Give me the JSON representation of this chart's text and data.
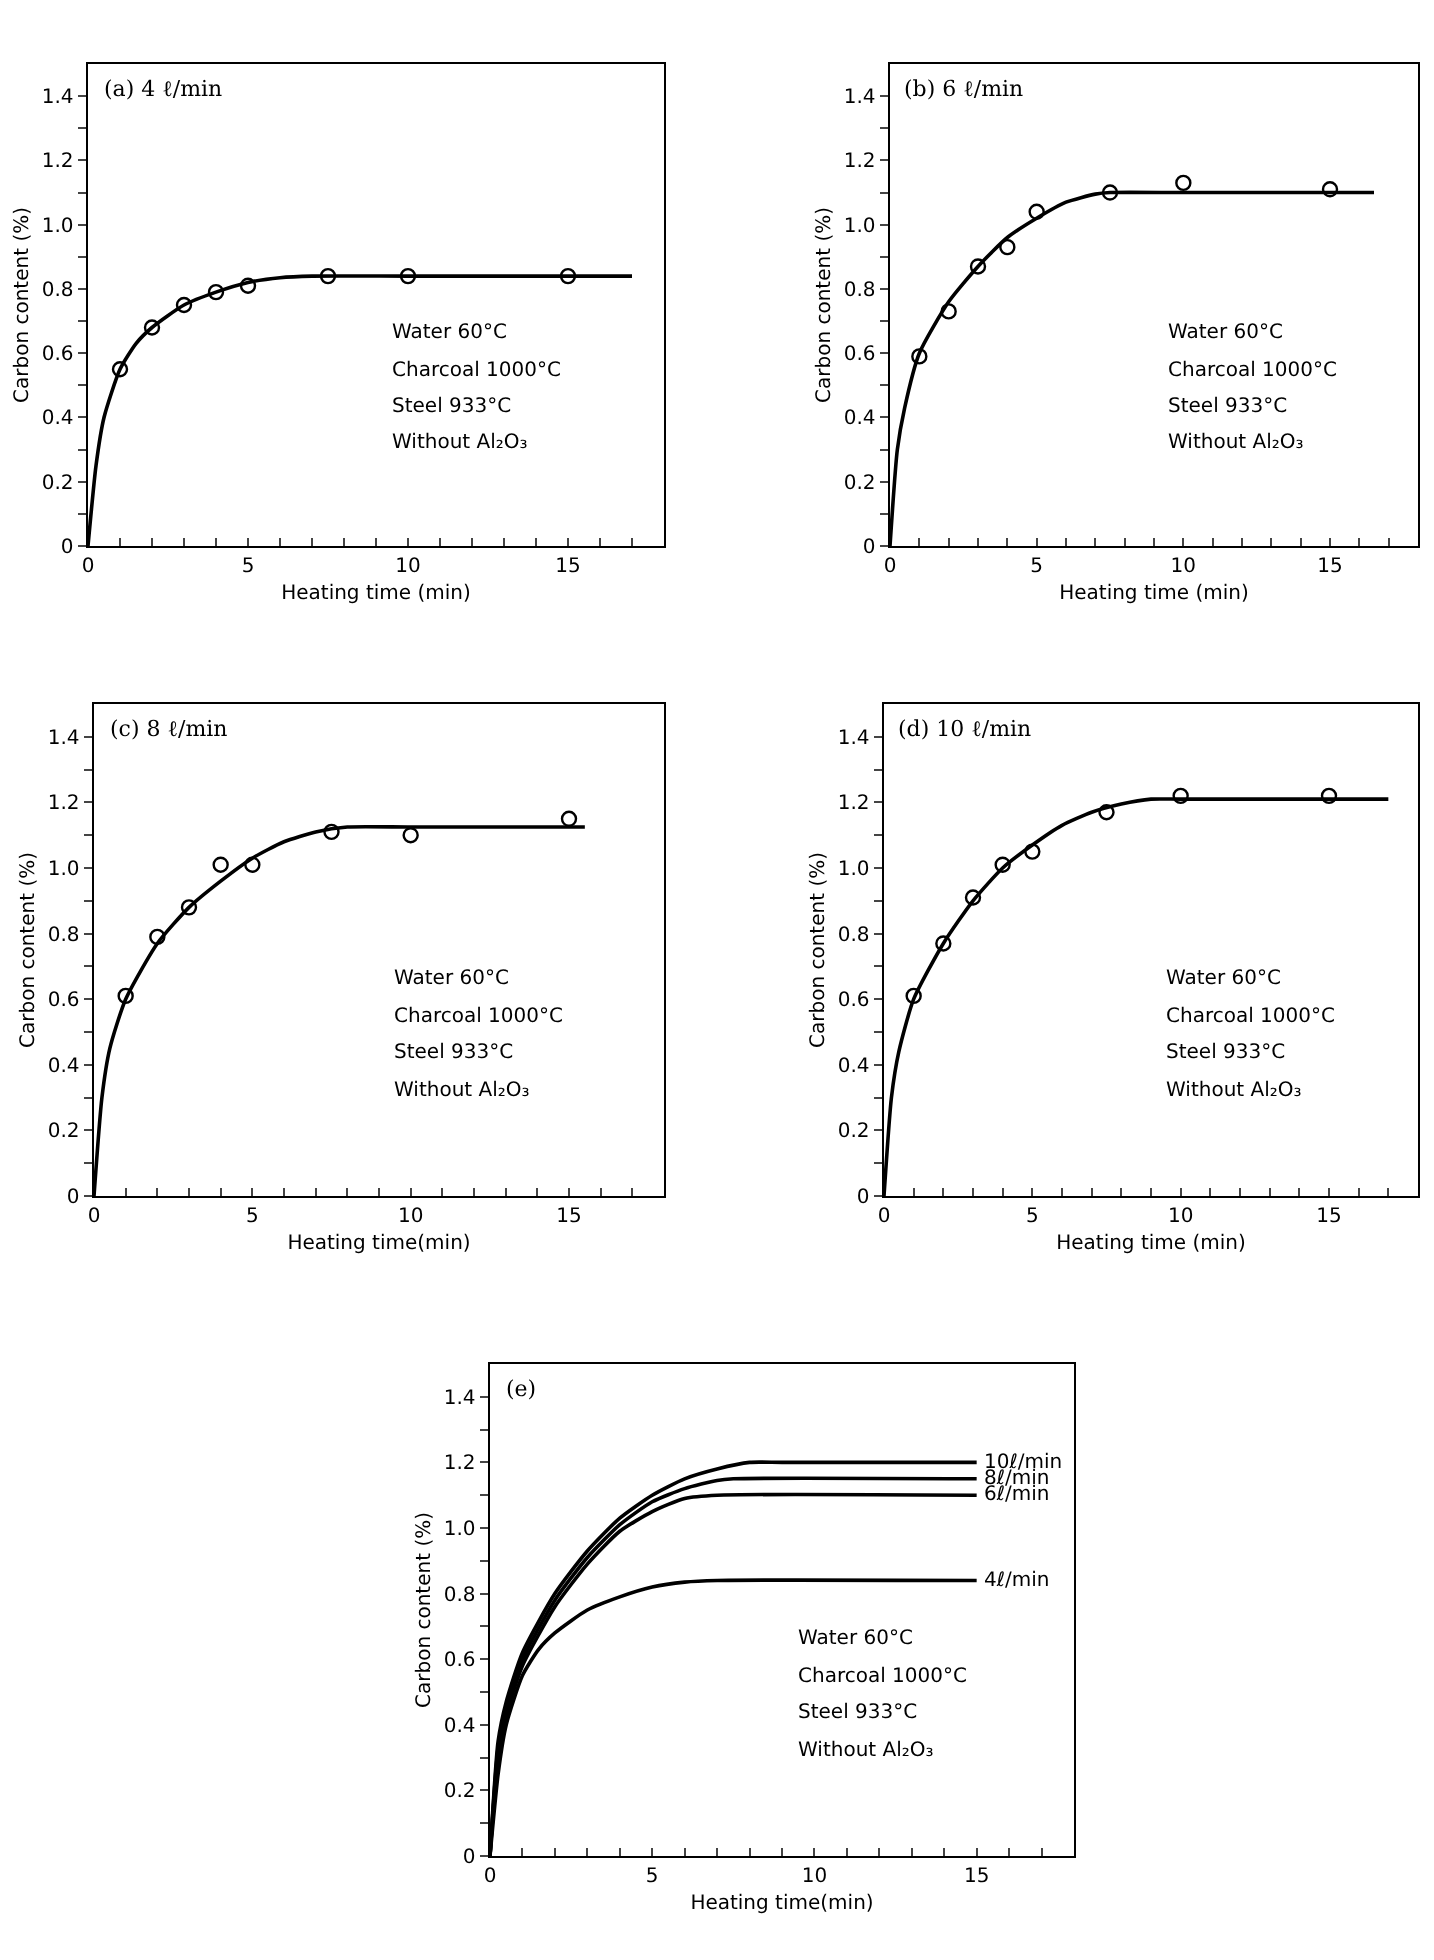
{
  "chart_data": [
    {
      "type": "scatter",
      "title": "(a) 4 ℓ/min",
      "xlabel": "Heating time (min)",
      "ylabel": "Carbon content (%)",
      "xlim": [
        0,
        18
      ],
      "ylim": [
        0,
        1.5
      ],
      "xticks": [
        0,
        {
          "value": 1,
          "label": null
        },
        {
          "value": 2,
          "label": null
        },
        {
          "value": 3,
          "label": null
        },
        {
          "value": 4,
          "label": null
        },
        5,
        {
          "value": 6,
          "label": null
        },
        {
          "value": 7,
          "label": null
        },
        {
          "value": 8,
          "label": null
        },
        {
          "value": 9,
          "label": null
        },
        10,
        {
          "value": 11,
          "label": null
        },
        {
          "value": 12,
          "label": null
        },
        {
          "value": 13,
          "label": null
        },
        {
          "value": 14,
          "label": null
        },
        15,
        {
          "value": 16,
          "label": null
        },
        {
          "value": 17,
          "label": null
        }
      ],
      "yticks": [
        0,
        {
          "value": 0.1,
          "label": null
        },
        0.2,
        {
          "value": 0.3,
          "label": null
        },
        0.4,
        {
          "value": 0.5,
          "label": null
        },
        0.6,
        {
          "value": 0.7,
          "label": null
        },
        0.8,
        {
          "value": 0.9,
          "label": null
        },
        {
          "value": 1,
          "label": "1.0"
        },
        {
          "value": 1.1,
          "label": null
        },
        1.2,
        {
          "value": 1.3,
          "label": null
        },
        1.4
      ],
      "series": [
        {
          "type": "line",
          "color": "#000000",
          "x": [
            0,
            0.25,
            0.5,
            1,
            1.5,
            2,
            3,
            4,
            5,
            6,
            7,
            10,
            17
          ],
          "values": [
            0,
            0.25,
            0.4,
            0.55,
            0.63,
            0.68,
            0.75,
            0.79,
            0.82,
            0.835,
            0.84,
            0.84,
            0.84
          ]
        },
        {
          "type": "scatter",
          "marker": "circle",
          "color": "#000000",
          "x": [
            1,
            2,
            3,
            4,
            5,
            7.5,
            10,
            15
          ],
          "values": [
            0.55,
            0.68,
            0.75,
            0.79,
            0.81,
            0.84,
            0.84,
            0.84
          ]
        }
      ],
      "annotations": [
        "Water 60°C",
        "Charcoal 1000°C",
        "Steel 933°C",
        "Without Al₂O₃"
      ],
      "legend": false,
      "grid": false
    },
    {
      "type": "scatter",
      "title": "(b) 6 ℓ/min",
      "xlabel": "Heating time (min)",
      "ylabel": "Carbon content (%)",
      "xlim": [
        0,
        18
      ],
      "ylim": [
        0,
        1.5
      ],
      "xticks": [
        0,
        {
          "value": 1,
          "label": null
        },
        {
          "value": 2,
          "label": null
        },
        {
          "value": 3,
          "label": null
        },
        {
          "value": 4,
          "label": null
        },
        5,
        {
          "value": 6,
          "label": null
        },
        {
          "value": 7,
          "label": null
        },
        {
          "value": 8,
          "label": null
        },
        {
          "value": 9,
          "label": null
        },
        10,
        {
          "value": 11,
          "label": null
        },
        {
          "value": 12,
          "label": null
        },
        {
          "value": 13,
          "label": null
        },
        {
          "value": 14,
          "label": null
        },
        15,
        {
          "value": 16,
          "label": null
        },
        {
          "value": 17,
          "label": null
        }
      ],
      "yticks": [
        0,
        {
          "value": 0.1,
          "label": null
        },
        0.2,
        {
          "value": 0.3,
          "label": null
        },
        0.4,
        {
          "value": 0.5,
          "label": null
        },
        0.6,
        {
          "value": 0.7,
          "label": null
        },
        0.8,
        {
          "value": 0.9,
          "label": null
        },
        {
          "value": 1,
          "label": "1.0"
        },
        {
          "value": 1.1,
          "label": null
        },
        1.2,
        {
          "value": 1.3,
          "label": null
        },
        1.4
      ],
      "series": [
        {
          "type": "line",
          "color": "#000000",
          "x": [
            0,
            0.25,
            0.5,
            1,
            2,
            3,
            4,
            5,
            6,
            7,
            7.5,
            10,
            16.5
          ],
          "values": [
            0,
            0.3,
            0.43,
            0.6,
            0.76,
            0.87,
            0.96,
            1.02,
            1.07,
            1.095,
            1.1,
            1.1,
            1.1
          ]
        },
        {
          "type": "scatter",
          "marker": "circle",
          "color": "#000000",
          "x": [
            1,
            2,
            3,
            4,
            5,
            7.5,
            10,
            15
          ],
          "values": [
            0.59,
            0.73,
            0.87,
            0.93,
            1.04,
            1.1,
            1.13,
            1.11
          ]
        }
      ],
      "annotations": [
        "Water 60°C",
        "Charcoal 1000°C",
        "Steel 933°C",
        "Without Al₂O₃"
      ],
      "legend": false,
      "grid": false
    },
    {
      "type": "scatter",
      "title": "(c) 8 ℓ/min",
      "xlabel": "Heating time(min)",
      "ylabel": "Carbon content (%)",
      "xlim": [
        0,
        18
      ],
      "ylim": [
        0,
        1.5
      ],
      "xticks": [
        0,
        {
          "value": 1,
          "label": null
        },
        {
          "value": 2,
          "label": null
        },
        {
          "value": 3,
          "label": null
        },
        {
          "value": 4,
          "label": null
        },
        5,
        {
          "value": 6,
          "label": null
        },
        {
          "value": 7,
          "label": null
        },
        {
          "value": 8,
          "label": null
        },
        {
          "value": 9,
          "label": null
        },
        10,
        {
          "value": 11,
          "label": null
        },
        {
          "value": 12,
          "label": null
        },
        {
          "value": 13,
          "label": null
        },
        {
          "value": 14,
          "label": null
        },
        15,
        {
          "value": 16,
          "label": null
        },
        {
          "value": 17,
          "label": null
        }
      ],
      "yticks": [
        0,
        {
          "value": 0.1,
          "label": null
        },
        0.2,
        {
          "value": 0.3,
          "label": null
        },
        0.4,
        {
          "value": 0.5,
          "label": null
        },
        0.6,
        {
          "value": 0.7,
          "label": null
        },
        0.8,
        {
          "value": 0.9,
          "label": null
        },
        {
          "value": 1,
          "label": "1.0"
        },
        {
          "value": 1.1,
          "label": null
        },
        1.2,
        {
          "value": 1.3,
          "label": null
        },
        1.4
      ],
      "series": [
        {
          "type": "line",
          "color": "#000000",
          "x": [
            0,
            0.25,
            0.5,
            1,
            2,
            3,
            4,
            5,
            6,
            7,
            8,
            10,
            15.5
          ],
          "values": [
            0,
            0.3,
            0.45,
            0.6,
            0.77,
            0.88,
            0.96,
            1.03,
            1.08,
            1.11,
            1.125,
            1.125,
            1.125
          ]
        },
        {
          "type": "scatter",
          "marker": "circle",
          "color": "#000000",
          "x": [
            1,
            2,
            3,
            4,
            5,
            7.5,
            10,
            15
          ],
          "values": [
            0.61,
            0.79,
            0.88,
            1.01,
            1.01,
            1.11,
            1.1,
            1.15
          ]
        }
      ],
      "annotations": [
        "Water 60°C",
        "Charcoal 1000°C",
        "Steel 933°C",
        "Without Al₂O₃"
      ],
      "legend": false,
      "grid": false
    },
    {
      "type": "scatter",
      "title": "(d) 10 ℓ/min",
      "xlabel": "Heating time (min)",
      "ylabel": "Carbon content (%)",
      "xlim": [
        0,
        18
      ],
      "ylim": [
        0,
        1.5
      ],
      "xticks": [
        0,
        {
          "value": 1,
          "label": null
        },
        {
          "value": 2,
          "label": null
        },
        {
          "value": 3,
          "label": null
        },
        {
          "value": 4,
          "label": null
        },
        5,
        {
          "value": 6,
          "label": null
        },
        {
          "value": 7,
          "label": null
        },
        {
          "value": 8,
          "label": null
        },
        {
          "value": 9,
          "label": null
        },
        10,
        {
          "value": 11,
          "label": null
        },
        {
          "value": 12,
          "label": null
        },
        {
          "value": 13,
          "label": null
        },
        {
          "value": 14,
          "label": null
        },
        15,
        {
          "value": 16,
          "label": null
        },
        {
          "value": 17,
          "label": null
        }
      ],
      "yticks": [
        0,
        {
          "value": 0.1,
          "label": null
        },
        0.2,
        {
          "value": 0.3,
          "label": null
        },
        0.4,
        {
          "value": 0.5,
          "label": null
        },
        0.6,
        {
          "value": 0.7,
          "label": null
        },
        0.8,
        {
          "value": 0.9,
          "label": null
        },
        {
          "value": 1,
          "label": "1.0"
        },
        {
          "value": 1.1,
          "label": null
        },
        1.2,
        {
          "value": 1.3,
          "label": null
        },
        1.4
      ],
      "series": [
        {
          "type": "line",
          "color": "#000000",
          "x": [
            0,
            0.25,
            0.5,
            1,
            2,
            3,
            4,
            5,
            6,
            7,
            8,
            9,
            10,
            17
          ],
          "values": [
            0,
            0.3,
            0.44,
            0.6,
            0.77,
            0.9,
            1,
            1.07,
            1.13,
            1.17,
            1.195,
            1.21,
            1.21,
            1.21
          ]
        },
        {
          "type": "scatter",
          "marker": "circle",
          "color": "#000000",
          "x": [
            1,
            2,
            3,
            4,
            5,
            7.5,
            10,
            15
          ],
          "values": [
            0.61,
            0.77,
            0.91,
            1.01,
            1.05,
            1.17,
            1.22,
            1.22
          ]
        }
      ],
      "annotations": [
        "Water 60°C",
        "Charcoal 1000°C",
        "Steel 933°C",
        "Without Al₂O₃"
      ],
      "legend": false,
      "grid": false
    },
    {
      "type": "line",
      "title": "(e)",
      "xlabel": "Heating time(min)",
      "ylabel": "Carbon content (%)",
      "xlim": [
        0,
        18
      ],
      "ylim": [
        0,
        1.5
      ],
      "xticks": [
        0,
        {
          "value": 1,
          "label": null
        },
        {
          "value": 2,
          "label": null
        },
        {
          "value": 3,
          "label": null
        },
        {
          "value": 4,
          "label": null
        },
        5,
        {
          "value": 6,
          "label": null
        },
        {
          "value": 7,
          "label": null
        },
        {
          "value": 8,
          "label": null
        },
        {
          "value": 9,
          "label": null
        },
        10,
        {
          "value": 11,
          "label": null
        },
        {
          "value": 12,
          "label": null
        },
        {
          "value": 13,
          "label": null
        },
        {
          "value": 14,
          "label": null
        },
        15,
        {
          "value": 16,
          "label": null
        },
        {
          "value": 17,
          "label": null
        }
      ],
      "yticks": [
        0,
        {
          "value": 0.1,
          "label": null
        },
        0.2,
        {
          "value": 0.3,
          "label": null
        },
        0.4,
        {
          "value": 0.5,
          "label": null
        },
        0.6,
        {
          "value": 0.7,
          "label": null
        },
        0.8,
        {
          "value": 0.9,
          "label": null
        },
        {
          "value": 1,
          "label": "1.0"
        },
        {
          "value": 1.1,
          "label": null
        },
        1.2,
        {
          "value": 1.3,
          "label": null
        },
        1.4
      ],
      "series": [
        {
          "name": "10ℓ/min",
          "color": "#000000",
          "x": [
            0,
            0.25,
            0.5,
            1,
            2,
            3,
            4,
            5,
            6,
            7,
            8,
            9,
            15
          ],
          "values": [
            0,
            0.35,
            0.47,
            0.62,
            0.8,
            0.93,
            1.03,
            1.1,
            1.15,
            1.18,
            1.2,
            1.2,
            1.2
          ]
        },
        {
          "name": "8ℓ/min",
          "color": "#000000",
          "x": [
            0,
            0.25,
            0.5,
            1,
            2,
            3,
            4,
            5,
            6,
            7,
            7.5,
            15
          ],
          "values": [
            0,
            0.33,
            0.45,
            0.6,
            0.78,
            0.91,
            1.01,
            1.08,
            1.12,
            1.145,
            1.15,
            1.15
          ]
        },
        {
          "name": "6ℓ/min",
          "color": "#000000",
          "x": [
            0,
            0.25,
            0.5,
            1,
            2,
            3,
            4,
            5,
            6,
            7,
            15
          ],
          "values": [
            0,
            0.31,
            0.43,
            0.58,
            0.76,
            0.89,
            0.99,
            1.05,
            1.09,
            1.1,
            1.1
          ]
        },
        {
          "name": "4ℓ/min",
          "color": "#000000",
          "x": [
            0,
            0.25,
            0.5,
            1,
            1.5,
            2,
            3,
            4,
            5,
            6,
            7,
            15
          ],
          "values": [
            0,
            0.25,
            0.4,
            0.55,
            0.63,
            0.68,
            0.75,
            0.79,
            0.82,
            0.835,
            0.84,
            0.84
          ]
        }
      ],
      "annotations": [
        "Water 60°C",
        "Charcoal 1000°C",
        "Steel 933°C",
        "Without Al₂O₃"
      ],
      "legend": false,
      "grid": false
    }
  ]
}
